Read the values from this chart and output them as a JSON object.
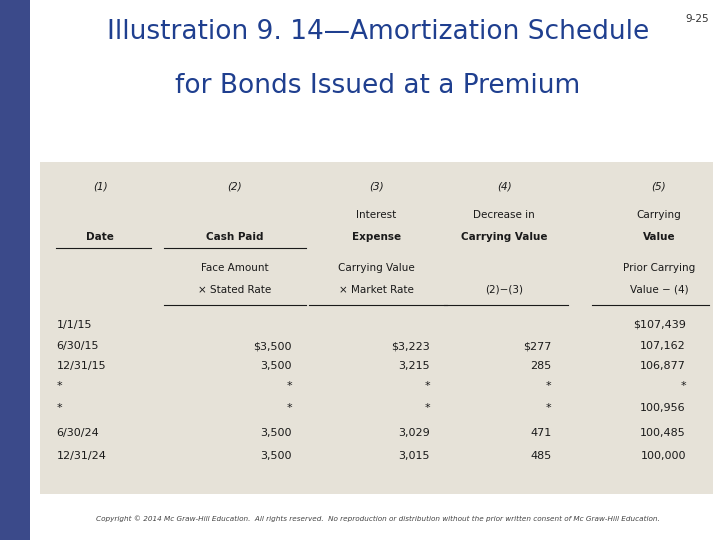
{
  "title_line1": "Illustration 9. 14—Amortization Schedule",
  "title_line2": "for Bonds Issued at a Premium",
  "page_num": "9-25",
  "title_color": "#1F3F8F",
  "bg_color": "#FFFFFF",
  "table_bg": "#E6E2D8",
  "sidebar_color": "#3B4A8A",
  "copyright": "Copyright © 2014 Mc Graw-Hill Education.  All rights reserved.  No reproduction or distribution without the prior written consent of Mc Graw-Hill Education.",
  "col_headers_top": [
    "(1)",
    "(2)",
    "(3)",
    "(4)",
    "(5)"
  ],
  "rows": [
    [
      "1/1/15",
      "",
      "",
      "",
      "$107,439"
    ],
    [
      "6/30/15",
      "$3,500",
      "$3,223",
      "$277",
      "107,162"
    ],
    [
      "12/31/15",
      "3,500",
      "3,215",
      "285",
      "106,877"
    ],
    [
      "*",
      "*",
      "*",
      "*",
      "*"
    ],
    [
      "*",
      "*",
      "*",
      "*",
      "100,956"
    ],
    [
      "6/30/24",
      "3,500",
      "3,029",
      "471",
      "100,485"
    ],
    [
      "12/31/24",
      "3,500",
      "3,015",
      "485",
      "100,000"
    ]
  ]
}
